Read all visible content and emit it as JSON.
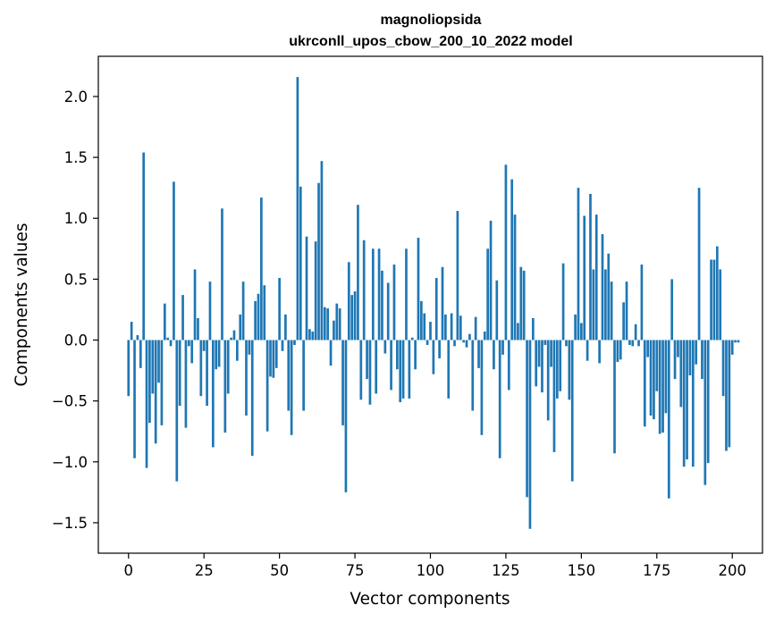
{
  "chart_data": {
    "type": "bar",
    "title_line1": "magnoliopsida",
    "title_line2": "ukrconll_upos_cbow_200_10_2022 model",
    "xlabel": "Vector components",
    "ylabel": "Components values",
    "xlim": [
      -10,
      210
    ],
    "ylim": [
      -1.75,
      2.33
    ],
    "xticks": [
      0,
      25,
      50,
      75,
      100,
      125,
      150,
      175,
      200
    ],
    "xtick_labels": [
      "0",
      "25",
      "50",
      "75",
      "100",
      "125",
      "150",
      "175",
      "200"
    ],
    "yticks": [
      -1.5,
      -1.0,
      -0.5,
      0.0,
      0.5,
      1.0,
      1.5,
      2.0
    ],
    "ytick_labels": [
      "−1.5",
      "−1.0",
      "−0.5",
      "0.0",
      "0.5",
      "1.0",
      "1.5",
      "2.0"
    ],
    "bar_color": "#1f77b4",
    "values": [
      -0.46,
      0.15,
      -0.97,
      0.04,
      -0.23,
      1.54,
      -1.05,
      -0.68,
      -0.44,
      -0.85,
      -0.35,
      -0.7,
      0.3,
      0.02,
      -0.05,
      1.3,
      -1.16,
      -0.54,
      0.37,
      -0.72,
      -0.05,
      -0.19,
      0.58,
      0.18,
      -0.46,
      -0.09,
      -0.54,
      0.48,
      -0.88,
      -0.24,
      -0.22,
      1.08,
      -0.76,
      -0.44,
      0.02,
      0.08,
      -0.17,
      0.21,
      0.48,
      -0.62,
      -0.12,
      -0.95,
      0.32,
      0.38,
      1.17,
      0.45,
      -0.75,
      -0.3,
      -0.31,
      -0.23,
      0.51,
      -0.09,
      0.21,
      -0.58,
      -0.78,
      -0.04,
      2.16,
      1.26,
      -0.58,
      0.85,
      0.09,
      0.07,
      0.81,
      1.29,
      1.47,
      0.27,
      0.26,
      -0.21,
      0.16,
      0.3,
      0.26,
      -0.7,
      -1.25,
      0.64,
      0.37,
      0.4,
      1.11,
      -0.49,
      0.82,
      -0.32,
      -0.53,
      0.75,
      -0.44,
      0.75,
      0.57,
      -0.11,
      0.47,
      -0.41,
      0.62,
      -0.24,
      -0.51,
      -0.48,
      0.75,
      -0.48,
      0.02,
      -0.24,
      0.84,
      0.32,
      0.22,
      -0.04,
      0.15,
      -0.28,
      0.51,
      -0.15,
      0.6,
      0.21,
      -0.48,
      0.22,
      -0.05,
      1.06,
      0.2,
      -0.02,
      -0.06,
      0.05,
      -0.58,
      0.19,
      -0.23,
      -0.78,
      0.07,
      0.75,
      0.98,
      -0.24,
      0.49,
      -0.97,
      -0.12,
      1.44,
      -0.41,
      1.32,
      1.03,
      0.14,
      0.6,
      0.57,
      -1.29,
      -1.55,
      0.18,
      -0.38,
      -0.22,
      -0.43,
      -0.04,
      -0.66,
      -0.22,
      -0.92,
      -0.48,
      -0.42,
      0.63,
      -0.05,
      -0.49,
      -1.16,
      0.21,
      1.25,
      0.14,
      1.02,
      -0.17,
      1.2,
      0.58,
      1.03,
      -0.19,
      0.87,
      0.58,
      0.71,
      0.48,
      -0.93,
      -0.18,
      -0.16,
      0.31,
      0.48,
      -0.04,
      -0.05,
      0.13,
      -0.05,
      0.62,
      -0.71,
      -0.14,
      -0.62,
      -0.65,
      -0.42,
      -0.77,
      -0.76,
      -0.6,
      -1.3,
      0.5,
      -0.32,
      -0.14,
      -0.55,
      -1.04,
      -0.98,
      -0.29,
      -1.04,
      -0.2,
      1.25,
      -0.32,
      -1.19,
      -1.01,
      0.66,
      0.66,
      0.77,
      0.58,
      -0.46,
      -0.91,
      -0.88,
      -0.12,
      -0.02,
      -0.02
    ]
  }
}
